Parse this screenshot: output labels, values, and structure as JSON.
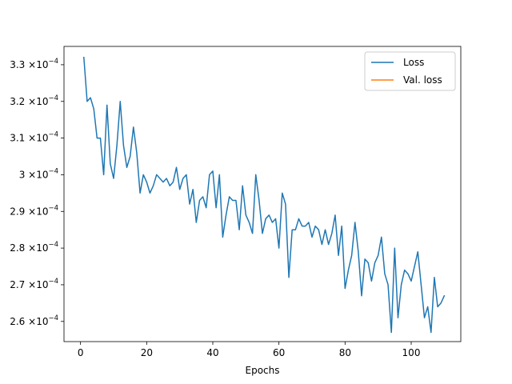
{
  "chart_data": {
    "type": "line",
    "title": "",
    "xlabel": "Epochs",
    "ylabel": "",
    "xlim": [
      -5,
      115
    ],
    "ylim": [
      0.0002545,
      0.000335
    ],
    "yscale": "linear",
    "grid": false,
    "legend_position": "top-right",
    "x_ticks": [
      0,
      20,
      40,
      60,
      80,
      100
    ],
    "y_ticks": [
      {
        "value": 0.00026,
        "mantissa": "2.6",
        "times": "×10",
        "exp": "−4"
      },
      {
        "value": 0.00027,
        "mantissa": "2.7",
        "times": "×10",
        "exp": "−4"
      },
      {
        "value": 0.00028,
        "mantissa": "2.8",
        "times": "×10",
        "exp": "−4"
      },
      {
        "value": 0.00029,
        "mantissa": "2.9",
        "times": "×10",
        "exp": "−4"
      },
      {
        "value": 0.0003,
        "mantissa": "3",
        "times": "×10",
        "exp": "−4"
      },
      {
        "value": 0.00031,
        "mantissa": "3.1",
        "times": "×10",
        "exp": "−4"
      },
      {
        "value": 0.00032,
        "mantissa": "3.2",
        "times": "×10",
        "exp": "−4"
      },
      {
        "value": 0.00033,
        "mantissa": "3.3",
        "times": "×10",
        "exp": "−4"
      }
    ],
    "series": [
      {
        "name": "Loss",
        "color": "#1f77b4",
        "x": [
          1,
          2,
          3,
          4,
          5,
          6,
          7,
          8,
          9,
          10,
          11,
          12,
          13,
          14,
          15,
          16,
          17,
          18,
          19,
          20,
          21,
          22,
          23,
          24,
          25,
          26,
          27,
          28,
          29,
          30,
          31,
          32,
          33,
          34,
          35,
          36,
          37,
          38,
          39,
          40,
          41,
          42,
          43,
          44,
          45,
          46,
          47,
          48,
          49,
          50,
          51,
          52,
          53,
          54,
          55,
          56,
          57,
          58,
          59,
          60,
          61,
          62,
          63,
          64,
          65,
          66,
          67,
          68,
          69,
          70,
          71,
          72,
          73,
          74,
          75,
          76,
          77,
          78,
          79,
          80,
          81,
          82,
          83,
          84,
          85,
          86,
          87,
          88,
          89,
          90,
          91,
          92,
          93,
          94,
          95,
          96,
          97,
          98,
          99,
          100,
          101,
          102,
          103,
          104,
          105,
          106,
          107,
          108,
          109,
          110
        ],
        "values": [
          0.000332,
          0.00032,
          0.000321,
          0.000318,
          0.00031,
          0.00031,
          0.0003,
          0.000319,
          0.000303,
          0.000299,
          0.000308,
          0.00032,
          0.000308,
          0.000302,
          0.000305,
          0.000313,
          0.000306,
          0.000295,
          0.0003,
          0.000298,
          0.000295,
          0.000297,
          0.0003,
          0.000299,
          0.000298,
          0.000299,
          0.000297,
          0.000298,
          0.000302,
          0.000296,
          0.000299,
          0.0003,
          0.000292,
          0.000296,
          0.000287,
          0.000293,
          0.000294,
          0.000291,
          0.0003,
          0.000301,
          0.000291,
          0.0003,
          0.000283,
          0.000289,
          0.000294,
          0.000293,
          0.000293,
          0.000285,
          0.000297,
          0.000289,
          0.000287,
          0.000284,
          0.0003,
          0.000293,
          0.000284,
          0.000288,
          0.000289,
          0.000287,
          0.000288,
          0.00028,
          0.000295,
          0.000292,
          0.000272,
          0.000285,
          0.000285,
          0.000288,
          0.000286,
          0.000286,
          0.000287,
          0.000283,
          0.000286,
          0.000285,
          0.000281,
          0.000285,
          0.000281,
          0.000284,
          0.000289,
          0.000278,
          0.000286,
          0.000269,
          0.000274,
          0.000278,
          0.000287,
          0.000279,
          0.000267,
          0.000277,
          0.000276,
          0.000271,
          0.000276,
          0.000278,
          0.000283,
          0.000273,
          0.00027,
          0.000257,
          0.00028,
          0.000261,
          0.00027,
          0.000274,
          0.000273,
          0.000271,
          0.000275,
          0.000279,
          0.00027,
          0.000261,
          0.000264,
          0.000257,
          0.000272,
          0.000264,
          0.000265,
          0.000267
        ]
      },
      {
        "name": "Val. loss",
        "color": "#ff7f0e",
        "x": [],
        "values": []
      }
    ]
  }
}
